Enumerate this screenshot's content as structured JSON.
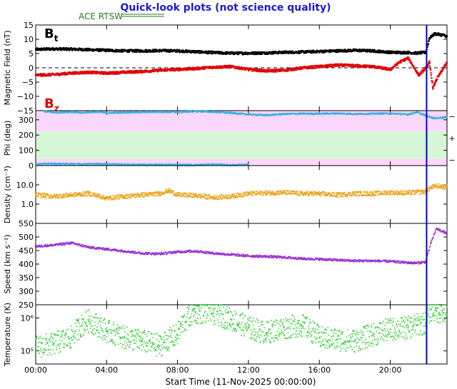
{
  "header": {
    "title": "Quick-look plots (not science quality)",
    "legend_label": "ACE RTSW",
    "title_color": "#1a1ad0",
    "legend_color": "#2a7a2a"
  },
  "xaxis": {
    "tick_labels": [
      "00:00",
      "04:00",
      "08:00",
      "12:00",
      "16:00",
      "20:00"
    ],
    "tick_hours": [
      0,
      4,
      8,
      12,
      16,
      20
    ],
    "range_hours": [
      0,
      23.2
    ],
    "label": "Start Time (11-Nov-2025 00:00:00)",
    "marker_hour": 22.05,
    "marker_color": "#0000cc"
  },
  "chart_data": [
    {
      "type": "scatter",
      "panel": "magnetic-field",
      "ylabel": "Magnetic Field (nT)",
      "ylim": [
        -15,
        15
      ],
      "yticks": [
        15,
        10,
        5,
        0,
        -5,
        -10,
        -15
      ],
      "tick_labels": [
        "15",
        "10",
        "5",
        "0",
        "−5",
        "−10",
        "−15"
      ],
      "zero_line": true,
      "series": [
        {
          "name": "Bt",
          "label_main": "B",
          "label_sub": "t",
          "color": "#000000",
          "x": [
            0,
            1,
            2,
            3,
            4,
            5,
            6,
            7,
            8,
            9,
            10,
            11,
            12,
            13,
            14,
            15,
            16,
            17,
            18,
            19,
            20,
            21,
            21.5,
            22,
            22.2,
            22.5,
            23,
            23.2
          ],
          "y": [
            6.5,
            6.7,
            6.6,
            6.4,
            6.2,
            6.0,
            6.0,
            6.1,
            6.0,
            5.7,
            5.4,
            5.2,
            5.2,
            5.3,
            5.5,
            5.6,
            5.8,
            6.0,
            6.2,
            6.0,
            5.5,
            5.4,
            5.2,
            5.5,
            10.5,
            12,
            11.5,
            11
          ]
        },
        {
          "name": "Bz",
          "label_main": "B",
          "label_sub": "z",
          "color": "#e00000",
          "x": [
            0,
            1,
            2,
            3,
            4,
            5,
            6,
            7,
            8,
            9,
            10,
            11,
            12,
            13,
            14,
            15,
            16,
            17,
            18,
            19,
            20,
            20.5,
            21,
            21.3,
            21.6,
            22,
            22.2,
            22.4,
            22.6,
            22.8,
            23,
            23.2
          ],
          "y": [
            -2.5,
            -2.3,
            -1.8,
            -1.5,
            -1.8,
            -1.5,
            -1.2,
            -0.8,
            -0.5,
            -0.2,
            0.3,
            0.5,
            -0.5,
            -1.0,
            -0.8,
            0.0,
            0.5,
            1.0,
            0.8,
            0.5,
            -0.5,
            2.0,
            3.5,
            0.5,
            -2.5,
            0,
            2.0,
            -7,
            -4,
            -2,
            0,
            2
          ]
        }
      ]
    },
    {
      "type": "scatter",
      "panel": "phi",
      "ylabel": "Phi (deg)",
      "ylim": [
        0,
        360
      ],
      "yticks": [
        0,
        100,
        200,
        300
      ],
      "tick_labels": [
        "0",
        "100",
        "200",
        "300"
      ],
      "bands": [
        {
          "from": 0,
          "to": 45,
          "color": "#fcd7fc"
        },
        {
          "from": 45,
          "to": 225,
          "color": "#d6f7d6"
        },
        {
          "from": 225,
          "to": 360,
          "color": "#fcd7fc"
        }
      ],
      "side_labels": [
        "−",
        "+",
        "−"
      ],
      "series": [
        {
          "name": "Phi",
          "color": "#3ab0e0",
          "x": [
            0.5,
            1,
            1.5,
            2,
            2.5,
            3,
            3.5,
            4,
            5,
            6,
            7,
            8,
            9,
            10,
            11,
            12,
            13,
            14,
            15,
            16,
            17,
            18,
            19,
            20,
            21,
            21.5,
            22.2,
            22.5,
            23,
            23.2
          ],
          "y": [
            355,
            348,
            350,
            352,
            345,
            350,
            352,
            345,
            348,
            350,
            352,
            350,
            355,
            352,
            345,
            335,
            330,
            338,
            340,
            340,
            342,
            338,
            340,
            342,
            335,
            350,
            320,
            310,
            315,
            318
          ]
        },
        {
          "name": "Phi-low",
          "color": "#3ab0e0",
          "x": [
            0,
            0.5,
            4.3,
            5.1,
            8,
            9,
            10,
            11,
            12
          ],
          "y": [
            8,
            12,
            10,
            6,
            5,
            4,
            8,
            3,
            6
          ]
        }
      ]
    },
    {
      "type": "scatter",
      "panel": "density",
      "ylabel": "Density (cm⁻³)",
      "ylim": [
        0.1,
        100
      ],
      "log": true,
      "yticks": [
        1,
        10
      ],
      "tick_labels": [
        "1.0",
        "10.0"
      ],
      "series": [
        {
          "name": "Density",
          "color": "#e8a010",
          "x": [
            0,
            1,
            2,
            3,
            4,
            5,
            6,
            7,
            7.5,
            8,
            9,
            10,
            11,
            12,
            13,
            14,
            15,
            16,
            17,
            18,
            19,
            20,
            21,
            22,
            22.3,
            22.6,
            23,
            23.2
          ],
          "y": [
            3.0,
            2.5,
            3.0,
            3.5,
            2.0,
            2.5,
            3.0,
            3.5,
            5.0,
            3.0,
            2.8,
            2.2,
            2.5,
            3.5,
            3.8,
            4.0,
            3.5,
            3.5,
            3.0,
            3.5,
            3.5,
            4.0,
            3.8,
            4.5,
            7.0,
            9.0,
            8.0,
            7.5
          ]
        }
      ]
    },
    {
      "type": "scatter",
      "panel": "speed",
      "ylabel": "Speed (km s⁻¹)",
      "ylim": [
        250,
        550
      ],
      "yticks": [
        250,
        300,
        350,
        400,
        450,
        500,
        550
      ],
      "tick_labels": [
        "250",
        "300",
        "350",
        "400",
        "450",
        "500",
        "550"
      ],
      "series": [
        {
          "name": "Speed",
          "color": "#9a30d0",
          "x": [
            0,
            1,
            2,
            3,
            4,
            5,
            6,
            7,
            8,
            9,
            10,
            11,
            12,
            13,
            14,
            15,
            16,
            17,
            18,
            19,
            20,
            21,
            21.5,
            22,
            22.3,
            22.6,
            23,
            23.2
          ],
          "y": [
            465,
            470,
            478,
            462,
            455,
            448,
            440,
            438,
            445,
            448,
            440,
            435,
            430,
            428,
            425,
            420,
            418,
            415,
            412,
            412,
            410,
            405,
            404,
            408,
            480,
            530,
            520,
            510
          ]
        }
      ]
    },
    {
      "type": "scatter",
      "panel": "temperature",
      "ylabel": "Temperature (K)",
      "ylim": [
        40000,
        2500000
      ],
      "log": true,
      "yticks": [
        100000,
        1000000
      ],
      "tick_labels": [
        "10⁵",
        "10⁶"
      ],
      "series": [
        {
          "name": "Temperature",
          "color": "#30d030",
          "x": [
            0,
            1,
            2,
            3,
            4,
            5,
            6,
            7,
            8,
            9,
            10,
            11,
            12,
            13,
            14,
            15,
            16,
            17,
            18,
            19,
            20,
            21,
            21.5,
            22,
            22.3,
            22.6,
            23,
            23.2
          ],
          "y": [
            130000,
            160000,
            250000,
            800000,
            400000,
            250000,
            200000,
            140000,
            300000,
            1500000,
            1400000,
            900000,
            500000,
            350000,
            500000,
            600000,
            250000,
            220000,
            200000,
            300000,
            450000,
            500000,
            600000,
            700000,
            1800000,
            1600000,
            1400000,
            1200000
          ]
        }
      ]
    }
  ]
}
